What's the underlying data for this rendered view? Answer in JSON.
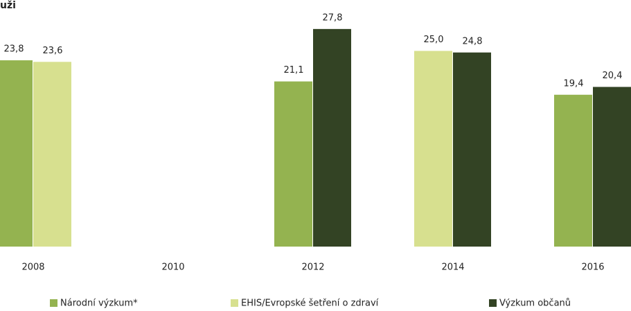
{
  "chart_data": {
    "type": "bar",
    "title": "uži",
    "categories": [
      "2008",
      "2010",
      "2012",
      "2014",
      "2016"
    ],
    "series": [
      {
        "name": "Národní výzkum*",
        "color": "#94b350",
        "values": [
          23.8,
          null,
          21.1,
          null,
          19.4
        ],
        "value_labels": [
          "23,8",
          null,
          "21,1",
          null,
          "19,4"
        ]
      },
      {
        "name": "EHIS/Evropské šetření o zdraví",
        "color": "#d7e08f",
        "values": [
          23.6,
          null,
          null,
          25.0,
          null
        ],
        "value_labels": [
          "23,6",
          null,
          null,
          "25,0",
          null
        ]
      },
      {
        "name": "Výzkum občanů",
        "color": "#334324",
        "values": [
          null,
          null,
          27.8,
          24.8,
          20.4
        ],
        "value_labels": [
          null,
          null,
          "27,8",
          "24,8",
          "20,4"
        ]
      }
    ],
    "ylim": [
      0,
      30
    ]
  }
}
